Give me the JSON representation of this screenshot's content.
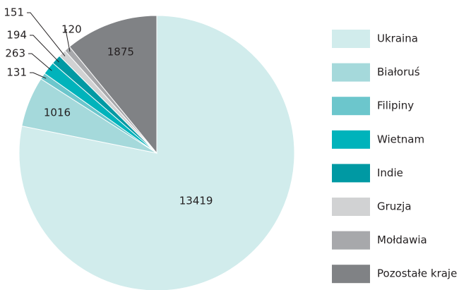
{
  "chart_data": {
    "type": "pie",
    "categories": [
      "Ukraina",
      "Białoruś",
      "Filipiny",
      "Wietnam",
      "Indie",
      "Gruzja",
      "Mołdawia",
      "Pozostałe kraje"
    ],
    "values": [
      13419,
      1016,
      131,
      263,
      194,
      151,
      120,
      1875
    ],
    "colors": [
      "#d1ecec",
      "#a5d9db",
      "#6cc6cc",
      "#00b3bb",
      "#0099a3",
      "#d1d2d3",
      "#a7a8ab",
      "#808285"
    ],
    "legend": "right"
  }
}
